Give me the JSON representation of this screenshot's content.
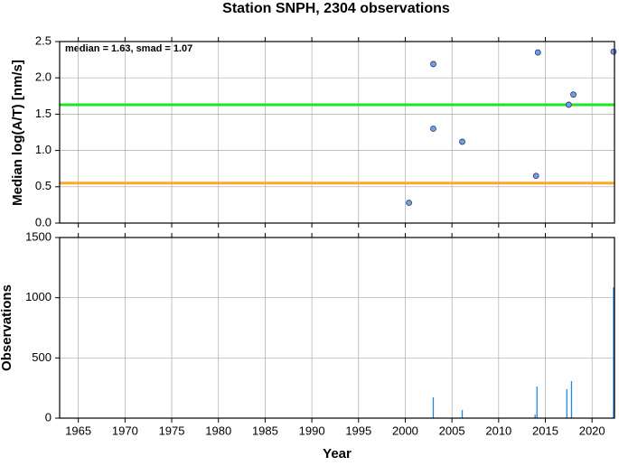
{
  "chart_data": [
    {
      "type": "scatter",
      "title": "Station SNPH, 2304 observations",
      "y_label": "Median log(A/T) [nm/s]",
      "annotation": "median = 1.63, smad = 1.07",
      "x": [
        2000.4,
        2003.0,
        2003.0,
        2006.1,
        2014.0,
        2014.2,
        2017.5,
        2018.0,
        2022.3
      ],
      "values": [
        0.28,
        2.19,
        1.3,
        1.12,
        0.65,
        2.35,
        1.63,
        1.77,
        2.36
      ],
      "color": "#6f9ff0",
      "lines": [
        {
          "value": 1.63,
          "color": "#1ee61e"
        },
        {
          "value": 0.55,
          "color": "#ffa726"
        }
      ],
      "xlim": [
        1963,
        2022.4
      ],
      "xticks": [
        1965,
        1970,
        1975,
        1980,
        1985,
        1990,
        1995,
        2000,
        2005,
        2010,
        2015,
        2020
      ],
      "ylim": [
        0,
        2.5
      ],
      "yticks": [
        {
          "value": 0,
          "label": "0.0"
        },
        0.5,
        {
          "value": 1,
          "label": "1.0"
        },
        1.5,
        {
          "value": 2,
          "label": "2.0"
        },
        2.5
      ],
      "grid": true
    },
    {
      "type": "bar",
      "x_label": "Year",
      "y_label": "Observations",
      "x": [
        2003.0,
        2006.1,
        2013.9,
        2014.1,
        2017.3,
        2017.8,
        2022.3
      ],
      "values": [
        172,
        67,
        30,
        262,
        240,
        307,
        1087
      ],
      "color": "#1e88e5",
      "xlim": [
        1963,
        2022.4
      ],
      "xticks": [
        1965,
        1970,
        1975,
        1980,
        1985,
        1990,
        1995,
        2000,
        2005,
        2010,
        2015,
        2020
      ],
      "ylim": [
        0,
        1500
      ],
      "yticks": [
        0,
        500,
        1000,
        1500
      ],
      "grid": true
    }
  ]
}
